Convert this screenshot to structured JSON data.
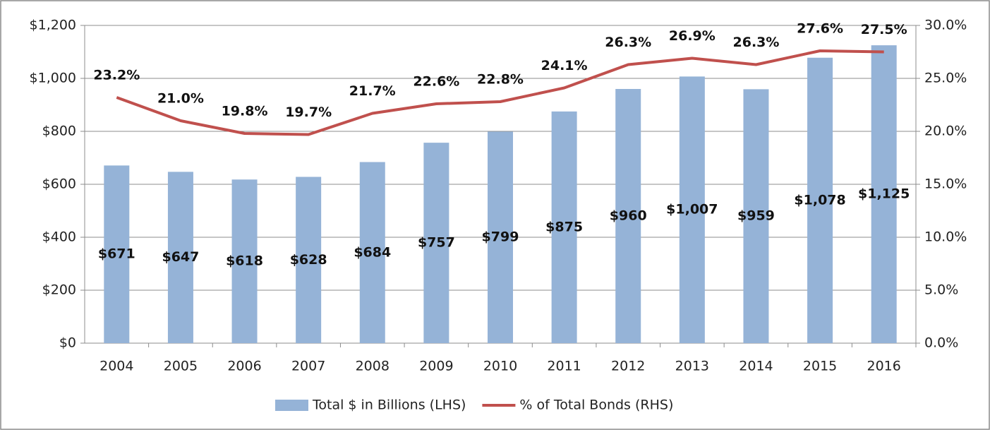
{
  "chart_data": {
    "type": "combo",
    "categories": [
      "2004",
      "2005",
      "2006",
      "2007",
      "2008",
      "2009",
      "2010",
      "2011",
      "2012",
      "2013",
      "2014",
      "2015",
      "2016"
    ],
    "series": [
      {
        "name": "Total $ in Billions (LHS)",
        "type": "bar",
        "color": "#95b3d7",
        "values": [
          671,
          647,
          618,
          628,
          684,
          757,
          799,
          875,
          960,
          1007,
          959,
          1078,
          1125
        ],
        "value_labels": [
          "$671",
          "$647",
          "$618",
          "$628",
          "$684",
          "$757",
          "$799",
          "$875",
          "$960",
          "$1,007",
          "$959",
          "$1,078",
          "$1,125"
        ]
      },
      {
        "name": "% of Total Bonds (RHS)",
        "type": "line",
        "axis": "y2",
        "color": "#c0504d",
        "values": [
          23.2,
          21.0,
          19.8,
          19.7,
          21.7,
          22.6,
          22.8,
          24.1,
          26.3,
          26.9,
          26.3,
          27.6,
          27.5
        ],
        "value_labels": [
          "23.2%",
          "21.0%",
          "19.8%",
          "19.7%",
          "21.7%",
          "22.6%",
          "22.8%",
          "24.1%",
          "26.3%",
          "26.9%",
          "26.3%",
          "27.6%",
          "27.5%"
        ]
      }
    ],
    "ylim": [
      0,
      1200
    ],
    "yticks": [
      {
        "value": 0,
        "label": "$0"
      },
      {
        "value": 200,
        "label": "$200"
      },
      {
        "value": 400,
        "label": "$400"
      },
      {
        "value": 600,
        "label": "$600"
      },
      {
        "value": 800,
        "label": "$800"
      },
      {
        "value": 1000,
        "label": "$1,000"
      },
      {
        "value": 1200,
        "label": "$1,200"
      }
    ],
    "y2lim": [
      0,
      30
    ],
    "y2ticks": [
      {
        "value": 0,
        "label": "0.0%"
      },
      {
        "value": 5,
        "label": "5.0%"
      },
      {
        "value": 10,
        "label": "10.0%"
      },
      {
        "value": 15,
        "label": "15.0%"
      },
      {
        "value": 20,
        "label": "20.0%"
      },
      {
        "value": 25,
        "label": "25.0%"
      },
      {
        "value": 30,
        "label": "30.0%"
      }
    ],
    "grid": true,
    "legend": "bottom"
  }
}
